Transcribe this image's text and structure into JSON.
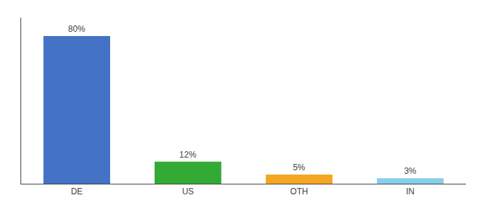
{
  "chart_data": {
    "type": "bar",
    "categories": [
      "DE",
      "US",
      "OTH",
      "IN"
    ],
    "values": [
      80,
      12,
      5,
      3
    ],
    "value_labels": [
      "80%",
      "12%",
      "5%",
      "3%"
    ],
    "data_labels": true,
    "colors": [
      "#4472c4",
      "#33aa33",
      "#f5a623",
      "#87ceeb"
    ],
    "ylim": [
      0,
      90
    ],
    "grid": false,
    "tick_labels": "x"
  }
}
